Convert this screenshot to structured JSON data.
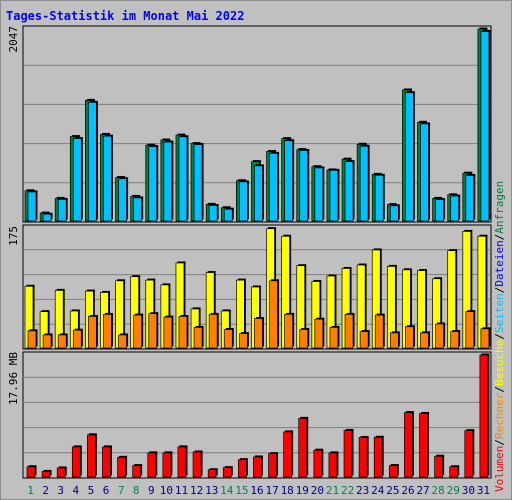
{
  "header": {
    "title": "Tages-Statistik im Monat Mai 2022"
  },
  "labels": {
    "top_max": "2047",
    "mid_max": "175",
    "bot_max": "17.96 MB",
    "right_axis_top": "Anfragen",
    "right_axis_top_sep": "/",
    "right_axis_top_2": "Dateien",
    "right_axis_mid_sep": "/",
    "right_axis_mid_1": "Seiten",
    "right_axis_mid_sep2": "/",
    "right_axis_mid_2": "Besuche",
    "right_axis_mid_sep3": "/",
    "right_axis_bot_1": "Rechner",
    "right_axis_bot_sep": "/",
    "right_axis_bot_2": "Volumen"
  },
  "colors": {
    "background": "#c0c0c0",
    "title": "#0000ff",
    "hits": "#008040",
    "files": "#00c0ff",
    "pages": "#ffff00",
    "visits": "#ff8000",
    "volume": "#ff0000",
    "weekend_label": "#00805c",
    "weekday_label": "#000080",
    "grid": "#7f7f7f"
  },
  "chart_data": {
    "type": "bar",
    "categories": [
      "1",
      "2",
      "3",
      "4",
      "5",
      "6",
      "7",
      "8",
      "9",
      "10",
      "11",
      "12",
      "13",
      "14",
      "15",
      "16",
      "17",
      "18",
      "19",
      "20",
      "21",
      "22",
      "23",
      "24",
      "25",
      "26",
      "27",
      "28",
      "29",
      "30",
      "31"
    ],
    "weekend_days": [
      "1",
      "7",
      "8",
      "14",
      "15",
      "21",
      "22",
      "28",
      "29"
    ],
    "panels": [
      {
        "name": "requests_files",
        "ymax": 2047,
        "series": [
          {
            "name": "Anfragen",
            "values": [
              322,
              84,
              241,
              900,
              1286,
              923,
              464,
              262,
              808,
              863,
              916,
              825,
              177,
              141,
              429,
              633,
              741,
              878,
              761,
              579,
              544,
              659,
              818,
              497,
              174,
              1397,
              1052,
              241,
              279,
              510,
              2047
            ]
          },
          {
            "name": "Dateien",
            "values": [
              310,
              72,
              230,
              880,
              1265,
              905,
              451,
              246,
              793,
              841,
              898,
              815,
              165,
              126,
              417,
              588,
              721,
              856,
              752,
              566,
              540,
              633,
              797,
              487,
              162,
              1368,
              1035,
              228,
              266,
              486,
              2021
            ]
          }
        ]
      },
      {
        "name": "pages_visits",
        "ymax": 175,
        "series": [
          {
            "name": "Seiten",
            "values": [
              90,
              53,
              84,
              54,
              83,
              81,
              98,
              104,
              99,
              92,
              124,
              57,
              110,
              54,
              99,
              89,
              174,
              163,
              120,
              97,
              105,
              116,
              121,
              143,
              119,
              114,
              113,
              101,
              142,
              170,
              163
            ]
          },
          {
            "name": "Besuche",
            "values": [
              25,
              19,
              19,
              26,
              46,
              49,
              19,
              48,
              50,
              45,
              46,
              30,
              49,
              27,
              21,
              43,
              98,
              49,
              27,
              42,
              30,
              49,
              24,
              48,
              22,
              31,
              22,
              35,
              24,
              53,
              28
            ]
          }
        ]
      },
      {
        "name": "volume",
        "ymax": 17.96,
        "unit": "MB",
        "series": [
          {
            "name": "Volumen",
            "values": [
              1.51,
              0.82,
              1.33,
              4.43,
              6.21,
              4.43,
              2.9,
              1.68,
              3.55,
              3.55,
              4.43,
              3.68,
              1.07,
              1.38,
              2.55,
              2.95,
              3.43,
              6.64,
              8.63,
              3.95,
              3.55,
              6.85,
              5.82,
              5.85,
              1.68,
              9.48,
              9.35,
              3.06,
              1.51,
              6.82,
              17.96
            ]
          }
        ]
      }
    ]
  }
}
